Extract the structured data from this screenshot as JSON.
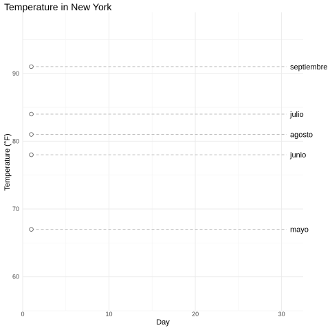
{
  "chart_data": {
    "type": "scatter",
    "title": "Temperature in New York",
    "xlabel": "Day",
    "ylabel": "Temperature (°F)",
    "xlim": [
      0,
      32.5
    ],
    "ylim": [
      55,
      99
    ],
    "x_ticks": [
      0,
      10,
      20,
      30
    ],
    "y_ticks": [
      60,
      70,
      80,
      90
    ],
    "grid": true,
    "series": [
      {
        "name": "septiembre",
        "x": [
          1
        ],
        "y": [
          91
        ]
      },
      {
        "name": "julio",
        "x": [
          1
        ],
        "y": [
          84
        ]
      },
      {
        "name": "agosto",
        "x": [
          1
        ],
        "y": [
          81
        ]
      },
      {
        "name": "junio",
        "x": [
          1
        ],
        "y": [
          78
        ]
      },
      {
        "name": "mayo",
        "x": [
          1
        ],
        "y": [
          67
        ]
      }
    ]
  }
}
